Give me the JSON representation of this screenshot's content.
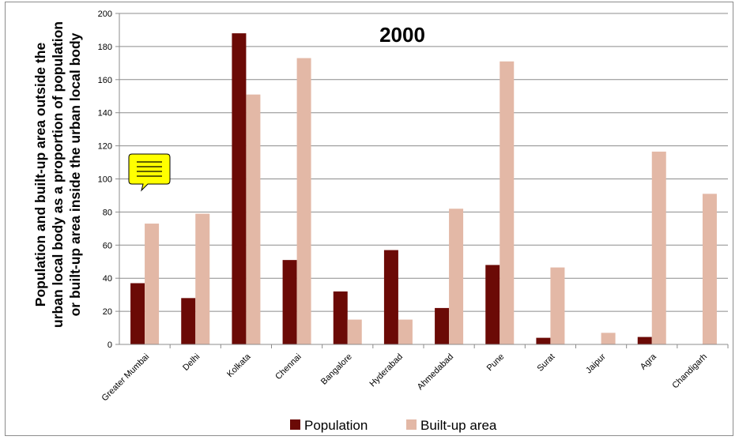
{
  "chart_data": {
    "type": "bar",
    "title": "2000",
    "ylabel_lines": [
      "Population and built-up area outside the",
      "urban local body as a proportion of population",
      "or built-up area inside the urban local body"
    ],
    "xlabel": "",
    "ylim": [
      0,
      200
    ],
    "yticks": [
      "0",
      "20",
      "40",
      "60",
      "80",
      "100",
      "120",
      "140",
      "160",
      "180",
      "200"
    ],
    "categories": [
      "Greater Mumbai",
      "Delhi",
      "Kolkata",
      "Chennai",
      "Bangalore",
      "Hyderabad",
      "Ahmedabad",
      "Pune",
      "Surat",
      "Jaipur",
      "Agra",
      "Chandigarh"
    ],
    "series": [
      {
        "name": "Population",
        "color": "#6b0a06",
        "values": [
          37,
          28,
          188,
          51,
          32,
          57,
          22,
          48,
          4,
          0,
          4.5,
          0
        ]
      },
      {
        "name": "Built-up area",
        "color": "#e3b8a6",
        "values": [
          73,
          79,
          151,
          173,
          15,
          15,
          82,
          171,
          46.5,
          7,
          116.5,
          91
        ]
      }
    ],
    "grid": true,
    "legend_position": "bottom"
  },
  "comment_icon": {
    "name": "comment-note-icon",
    "color": "#ffff00"
  }
}
